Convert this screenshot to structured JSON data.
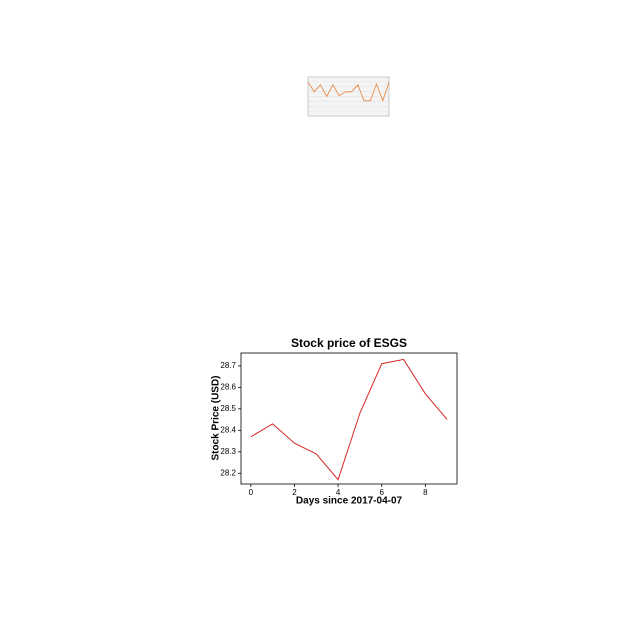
{
  "chart_data": [
    {
      "type": "line",
      "color": "#e8833a",
      "grid": true,
      "ylim": [
        0,
        10
      ],
      "x": [
        0,
        1,
        2,
        3,
        4,
        5,
        6,
        7,
        8,
        9,
        10,
        11,
        12,
        13
      ],
      "xlim": [
        0,
        13
      ],
      "series": [
        {
          "color": "#e8833a",
          "values": [
            8.7,
            6.2,
            8,
            5,
            8,
            5.2,
            6.2,
            6.2,
            8,
            3.9,
            3.9,
            8.2,
            3.9,
            8.7
          ]
        }
      ]
    },
    {
      "type": "line",
      "title": "Stock price of ESGS",
      "xlabel": "Days since 2017-04-07",
      "ylabel": "Stock Price (USD)",
      "x": [
        0,
        1,
        2,
        3,
        4,
        5,
        6,
        7,
        8,
        9
      ],
      "xlim": [
        -0.45,
        9.45
      ],
      "xticks": [
        0,
        2,
        4,
        6,
        8
      ],
      "ylim": [
        28.15,
        28.76
      ],
      "yticks": [
        28.2,
        28.3,
        28.4,
        28.5,
        28.6,
        28.7
      ],
      "grid": false,
      "series": [
        {
          "color": "#d62728",
          "values": [
            28.37,
            28.43,
            28.34,
            28.29,
            28.17,
            28.48,
            28.71,
            28.73,
            28.57,
            28.45
          ]
        }
      ]
    }
  ]
}
